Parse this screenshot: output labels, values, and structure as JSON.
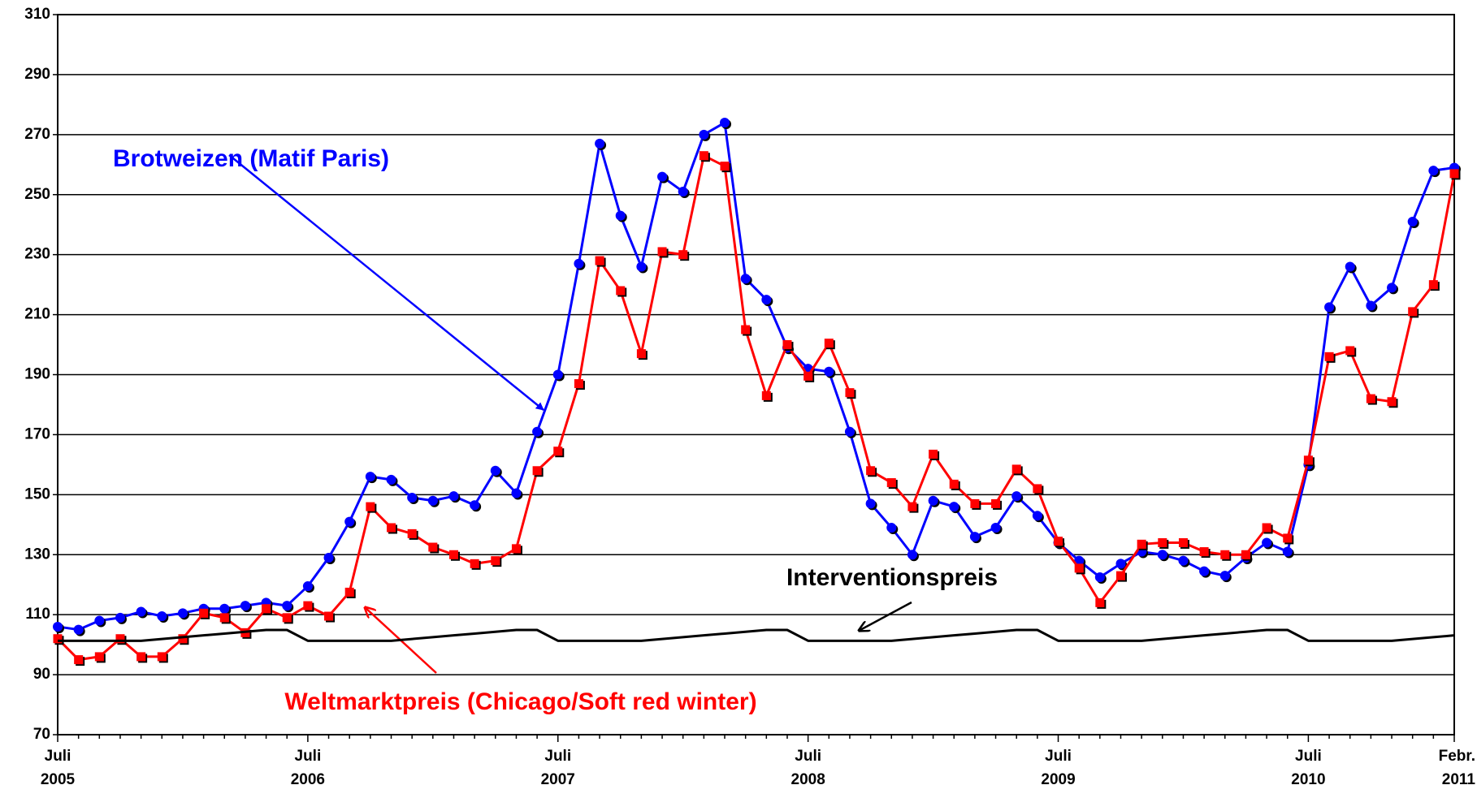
{
  "chart_data": {
    "type": "line",
    "categories": [
      "Juli 2005",
      null,
      null,
      null,
      null,
      null,
      null,
      null,
      null,
      null,
      null,
      null,
      "Juli 2006",
      null,
      null,
      null,
      null,
      null,
      null,
      null,
      null,
      null,
      null,
      null,
      "Juli 2007",
      null,
      null,
      null,
      null,
      null,
      null,
      null,
      null,
      null,
      null,
      null,
      "Juli 2008",
      null,
      null,
      null,
      null,
      null,
      null,
      null,
      null,
      null,
      null,
      null,
      "Juli 2009",
      null,
      null,
      null,
      null,
      null,
      null,
      null,
      null,
      null,
      null,
      null,
      "Juli 2010",
      null,
      null,
      null,
      null,
      null,
      null,
      "Febr. 2011"
    ],
    "series": [
      {
        "name": "Brotweizen (Matif Paris)",
        "color": "#0000ff",
        "marker": "circle",
        "values": [
          106,
          105,
          108,
          109,
          111,
          109.5,
          110.5,
          112,
          112,
          113,
          114,
          113,
          119.5,
          129,
          141,
          156,
          155,
          149,
          148,
          149.5,
          146.5,
          158,
          150.5,
          171,
          190,
          227,
          267,
          243,
          226,
          256,
          251,
          270,
          274,
          222,
          215,
          199,
          192,
          191,
          171,
          147,
          139,
          130,
          148,
          146,
          136,
          139,
          149.5,
          143,
          134,
          128,
          122.5,
          127,
          131,
          130,
          128,
          124.5,
          123,
          129,
          134,
          131,
          160,
          212.5,
          226,
          213,
          219,
          241,
          258,
          259
        ]
      },
      {
        "name": "Weltmarktpreis (Chicago/Soft red winter)",
        "color": "#ff0000",
        "marker": "square",
        "values": [
          102,
          95,
          96,
          102,
          96,
          96,
          102,
          110.5,
          109,
          104,
          112,
          109,
          113,
          109.5,
          117.5,
          146,
          139,
          137,
          132.5,
          130,
          127,
          128,
          132,
          158,
          164.5,
          187,
          228,
          218,
          197,
          231,
          230,
          263,
          259.5,
          205,
          183,
          200,
          189.5,
          200.5,
          184,
          158,
          154,
          146,
          163.5,
          153.5,
          147,
          147,
          158.5,
          152,
          134.5,
          125.5,
          114,
          123,
          133.5,
          134,
          134,
          131,
          130,
          130,
          139,
          135.5,
          161.5,
          196,
          198,
          182,
          181,
          211,
          220,
          257
        ]
      },
      {
        "name": "Interventionspreis",
        "color": "#000000",
        "marker": "none",
        "values": [
          101.3,
          101.3,
          101.3,
          101.3,
          101.3,
          101.9,
          102.5,
          103.1,
          103.7,
          104.3,
          104.9,
          104.9,
          101.3,
          101.3,
          101.3,
          101.3,
          101.3,
          101.9,
          102.5,
          103.1,
          103.7,
          104.3,
          104.9,
          104.9,
          101.3,
          101.3,
          101.3,
          101.3,
          101.3,
          101.9,
          102.5,
          103.1,
          103.7,
          104.3,
          104.9,
          104.9,
          101.3,
          101.3,
          101.3,
          101.3,
          101.3,
          101.9,
          102.5,
          103.1,
          103.7,
          104.3,
          104.9,
          104.9,
          101.3,
          101.3,
          101.3,
          101.3,
          101.3,
          101.9,
          102.5,
          103.1,
          103.7,
          104.3,
          104.9,
          104.9,
          101.3,
          101.3,
          101.3,
          101.3,
          101.3,
          101.9,
          102.5,
          103.1
        ]
      }
    ],
    "ylim": [
      70,
      310
    ],
    "yticks": [
      70,
      90,
      110,
      130,
      150,
      170,
      190,
      210,
      230,
      250,
      270,
      290,
      310
    ],
    "grid": true
  }
}
